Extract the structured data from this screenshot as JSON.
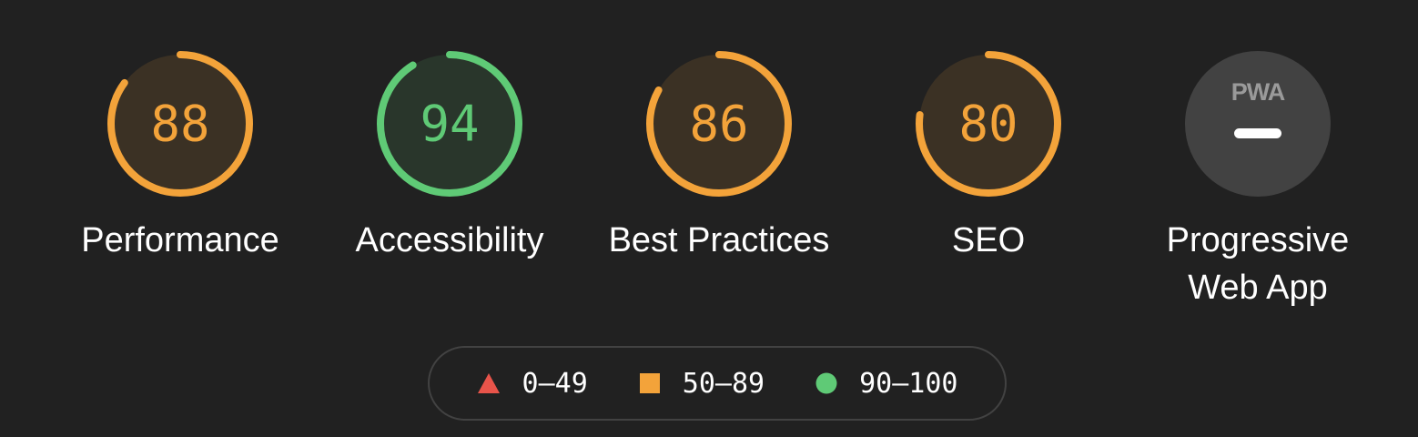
{
  "colors": {
    "background": "#212121",
    "fail": "#e8544a",
    "average": "#f3a33a",
    "pass": "#5fca76",
    "pwa_badge": "#424242",
    "pwa_text": "#9a9a9a",
    "legend_border": "#424242"
  },
  "gauges": [
    {
      "name": "performance",
      "score": "88",
      "label": "Performance",
      "rating": "average",
      "fraction": 0.88
    },
    {
      "name": "accessibility",
      "score": "94",
      "label": "Accessibility",
      "rating": "pass",
      "fraction": 0.94
    },
    {
      "name": "best-practices",
      "score": "86",
      "label": "Best Practices",
      "rating": "average",
      "fraction": 0.86
    },
    {
      "name": "seo",
      "score": "80",
      "label": "SEO",
      "rating": "average",
      "fraction": 0.8
    }
  ],
  "pwa": {
    "label_line1": "Progressive",
    "label_line2": "Web App",
    "badge_text": "PWA",
    "icon": "pwa-icon",
    "status_icon": "dash-icon"
  },
  "legend": {
    "fail": {
      "range": "0–49",
      "icon": "triangle-icon"
    },
    "average": {
      "range": "50–89",
      "icon": "square-icon"
    },
    "pass": {
      "range": "90–100",
      "icon": "circle-icon"
    }
  }
}
